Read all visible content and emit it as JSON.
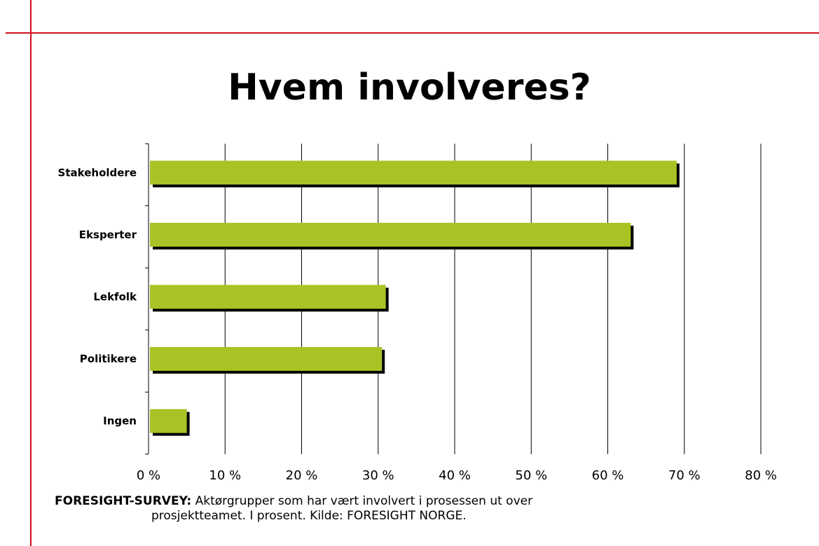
{
  "title": "Hvem involveres?",
  "caption": {
    "lead": "FORESIGHT-SURVEY:",
    "line1": " Aktørgrupper som har vært involvert i prosessen ut over",
    "line2": "prosjektteamet. I prosent. Kilde: FORESIGHT NORGE."
  },
  "colors": {
    "bar": "#a8c324",
    "bar_shadow": "#000000",
    "frame": "#d0101e"
  },
  "chart_data": {
    "type": "bar",
    "orientation": "horizontal",
    "title": "",
    "xlabel": "",
    "ylabel": "",
    "categories": [
      "Stakeholdere",
      "Eksperter",
      "Lekfolk",
      "Politikere",
      "Ingen"
    ],
    "values": [
      69,
      63,
      31,
      30.5,
      5
    ],
    "xlim": [
      0,
      80
    ],
    "x_ticks": [
      0,
      10,
      20,
      30,
      40,
      50,
      60,
      70,
      80
    ],
    "x_tick_labels": [
      "0 %",
      "10 %",
      "20 %",
      "30 %",
      "40 %",
      "50 %",
      "60 %",
      "70 %",
      "80 %"
    ],
    "grid": "vertical",
    "legend": "none"
  }
}
